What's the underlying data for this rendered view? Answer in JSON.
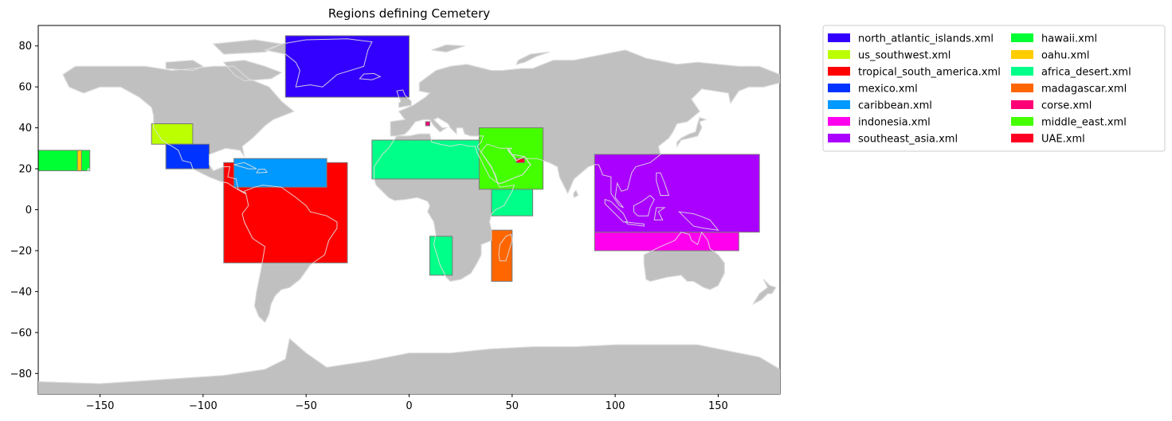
{
  "chart_data": {
    "type": "map",
    "title": "Regions defining Cemetery",
    "xlim": [
      -180,
      180
    ],
    "ylim": [
      -90,
      90
    ],
    "xticks": [
      -150,
      -100,
      -50,
      0,
      50,
      100,
      150
    ],
    "yticks": [
      -80,
      -60,
      -40,
      -20,
      0,
      20,
      40,
      60,
      80
    ],
    "land_color": "#c0c0c0",
    "coast_color": "#e0e0e0",
    "legend_position": "outside-right",
    "regions": [
      {
        "name": "north_atlantic_islands.xml",
        "color": "#3300ff",
        "lon": [
          -60,
          0
        ],
        "lat": [
          55,
          85
        ]
      },
      {
        "name": "us_southwest.xml",
        "color": "#bbff00",
        "lon": [
          -125,
          -105
        ],
        "lat": [
          32,
          42
        ]
      },
      {
        "name": "tropical_south_america.xml",
        "color": "#ff0000",
        "lon": [
          -90,
          -30
        ],
        "lat": [
          -26,
          23
        ]
      },
      {
        "name": "mexico.xml",
        "color": "#0033ff",
        "lon": [
          -118,
          -97
        ],
        "lat": [
          20,
          32
        ]
      },
      {
        "name": "caribbean.xml",
        "color": "#0099ff",
        "lon": [
          -85,
          -40
        ],
        "lat": [
          11,
          25
        ]
      },
      {
        "name": "indonesia.xml",
        "color": "#ff00ee",
        "lon": [
          90,
          160
        ],
        "lat": [
          -20,
          -11
        ]
      },
      {
        "name": "southeast_asia.xml",
        "color": "#aa00ff",
        "lon": [
          90,
          170
        ],
        "lat": [
          -11,
          27
        ]
      },
      {
        "name": "hawaii.xml",
        "color": "#00ff33",
        "lon": [
          -180,
          -155
        ],
        "lat": [
          19,
          29
        ]
      },
      {
        "name": "oahu.xml",
        "color": "#ffcc00",
        "lon": [
          -161,
          -159
        ],
        "lat": [
          19,
          29
        ]
      },
      {
        "name": "africa_desert.xml",
        "color": "#00ff88",
        "lon": [
          -18,
          40
        ],
        "lat": [
          15,
          34
        ]
      },
      {
        "name": "madagascar.xml",
        "color": "#ff6600",
        "lon": [
          40,
          50
        ],
        "lat": [
          -35,
          -10
        ]
      },
      {
        "name": "corse.xml",
        "color": "#ff0077",
        "lon": [
          8,
          10
        ],
        "lat": [
          41,
          43
        ]
      },
      {
        "name": "middle_east.xml",
        "color": "#44ff00",
        "lon": [
          34,
          65
        ],
        "lat": [
          10,
          40
        ]
      },
      {
        "name": "UAE.xml",
        "color": "#ff0022",
        "lon": [
          52,
          56
        ],
        "lat": [
          23,
          25
        ]
      }
    ],
    "extra_patches": [
      {
        "series": "africa_desert.xml",
        "color": "#00ff88",
        "lon": [
          40,
          60
        ],
        "lat": [
          -3,
          10
        ]
      },
      {
        "series": "africa_desert.xml",
        "color": "#00ff88",
        "lon": [
          10,
          21
        ],
        "lat": [
          -32,
          -13
        ]
      },
      {
        "series": "mexico.xml",
        "color": "#0033ff",
        "lon": [
          -118,
          -110
        ],
        "lat": [
          20,
          32
        ]
      }
    ]
  }
}
